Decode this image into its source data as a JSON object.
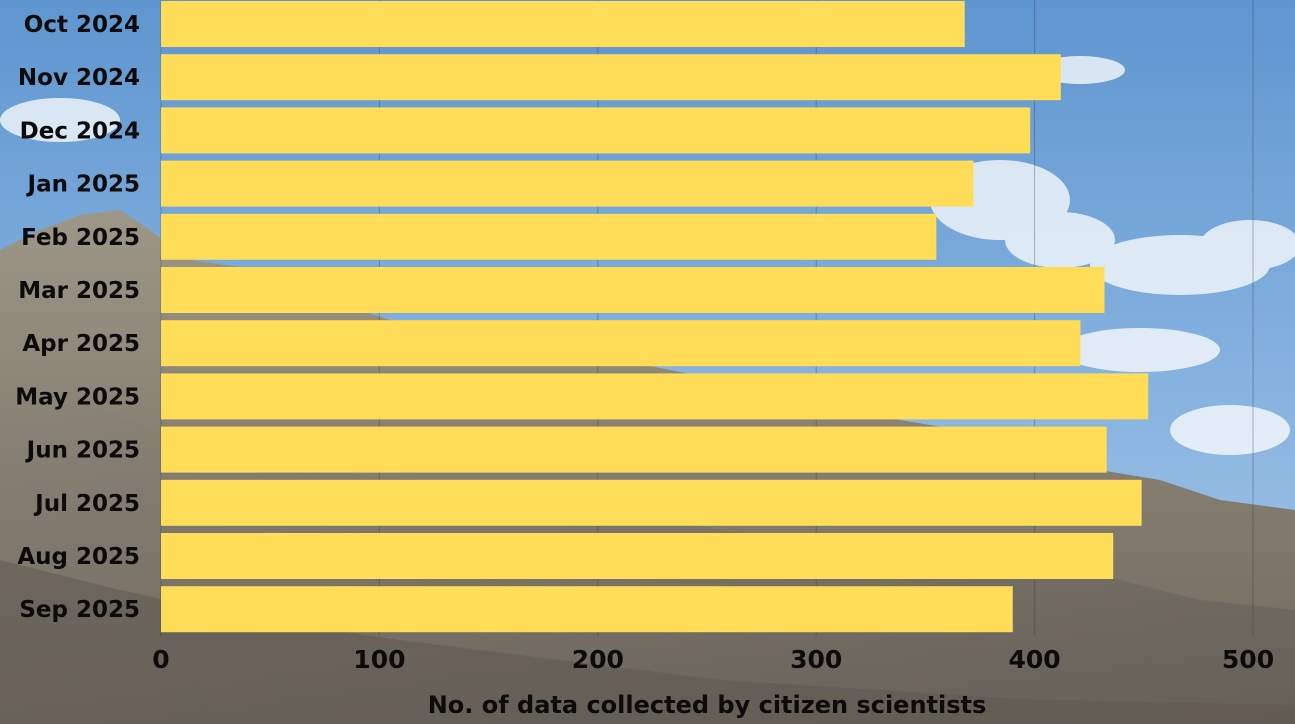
{
  "chart_data": {
    "type": "bar",
    "orientation": "horizontal",
    "categories": [
      "Oct 2024",
      "Nov 2024",
      "Dec 2024",
      "Jan 2025",
      "Feb 2025",
      "Mar 2025",
      "Apr 2025",
      "May 2025",
      "Jun 2025",
      "Jul 2025",
      "Aug 2025",
      "Sep 2025"
    ],
    "values": [
      368,
      412,
      398,
      372,
      355,
      432,
      421,
      452,
      433,
      449,
      436,
      390
    ],
    "xlabel": "No. of data collected by citizen scientists",
    "ylabel": "",
    "title": "",
    "xlim": [
      0,
      500
    ],
    "xticks": [
      0,
      100,
      200,
      300,
      400,
      500
    ],
    "grid": "vertical",
    "bar_color": "#ffdd59",
    "background": "sky-and-mountain photo"
  }
}
